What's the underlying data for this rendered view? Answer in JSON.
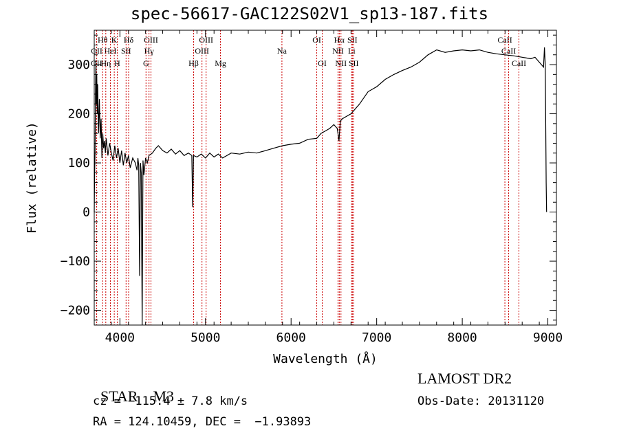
{
  "title": "spec-56617-GAC122S02V1_sp13-187.fits",
  "footer": {
    "class_label": "STAR",
    "subclass": "M3",
    "survey": "LAMOST DR2",
    "cz": "cz = −115.4 ± 7.8 km/s",
    "obs_date": "Obs-Date: 20131120",
    "radec": "RA = 124.10459, DEC =  −1.93893"
  },
  "chart_data": {
    "type": "line",
    "title": "spec-56617-GAC122S02V1_sp13-187.fits",
    "xlabel": "Wavelength (Å)",
    "ylabel": "Flux (relative)",
    "xlim": [
      3700,
      9100
    ],
    "ylim": [
      -230,
      370
    ],
    "xticks": [
      4000,
      5000,
      6000,
      7000,
      8000,
      9000
    ],
    "yticks": [
      -200,
      -100,
      0,
      100,
      200,
      300
    ],
    "ytick_labels": [
      "−200",
      "−100",
      "0",
      "100",
      "200",
      "300"
    ],
    "grid": false,
    "line_color": "#000000",
    "marker_color": "#cc0000",
    "spectrum": [
      [
        3700,
        0
      ],
      [
        3705,
        80
      ],
      [
        3710,
        120
      ],
      [
        3715,
        250
      ],
      [
        3720,
        310
      ],
      [
        3725,
        220
      ],
      [
        3730,
        280
      ],
      [
        3735,
        200
      ],
      [
        3740,
        260
      ],
      [
        3750,
        160
      ],
      [
        3760,
        230
      ],
      [
        3770,
        150
      ],
      [
        3780,
        190
      ],
      [
        3790,
        110
      ],
      [
        3800,
        160
      ],
      [
        3810,
        130
      ],
      [
        3820,
        145
      ],
      [
        3830,
        120
      ],
      [
        3840,
        150
      ],
      [
        3860,
        115
      ],
      [
        3880,
        140
      ],
      [
        3900,
        120
      ],
      [
        3920,
        105
      ],
      [
        3940,
        135
      ],
      [
        3960,
        110
      ],
      [
        3980,
        130
      ],
      [
        4000,
        100
      ],
      [
        4020,
        125
      ],
      [
        4040,
        95
      ],
      [
        4060,
        120
      ],
      [
        4080,
        100
      ],
      [
        4100,
        115
      ],
      [
        4120,
        90
      ],
      [
        4150,
        110
      ],
      [
        4180,
        100
      ],
      [
        4200,
        85
      ],
      [
        4210,
        110
      ],
      [
        4220,
        95
      ],
      [
        4230,
        -130
      ],
      [
        4240,
        100
      ],
      [
        4250,
        80
      ],
      [
        4260,
        -230
      ],
      [
        4270,
        105
      ],
      [
        4280,
        75
      ],
      [
        4300,
        110
      ],
      [
        4320,
        100
      ],
      [
        4340,
        115
      ],
      [
        4380,
        120
      ],
      [
        4420,
        130
      ],
      [
        4450,
        135
      ],
      [
        4500,
        125
      ],
      [
        4550,
        120
      ],
      [
        4600,
        128
      ],
      [
        4650,
        118
      ],
      [
        4700,
        125
      ],
      [
        4750,
        115
      ],
      [
        4800,
        120
      ],
      [
        4840,
        115
      ],
      [
        4850,
        10
      ],
      [
        4860,
        115
      ],
      [
        4900,
        112
      ],
      [
        4950,
        118
      ],
      [
        5000,
        110
      ],
      [
        5050,
        120
      ],
      [
        5100,
        112
      ],
      [
        5150,
        118
      ],
      [
        5200,
        110
      ],
      [
        5300,
        120
      ],
      [
        5400,
        118
      ],
      [
        5500,
        122
      ],
      [
        5600,
        120
      ],
      [
        5700,
        125
      ],
      [
        5800,
        130
      ],
      [
        5900,
        135
      ],
      [
        6000,
        138
      ],
      [
        6100,
        140
      ],
      [
        6200,
        148
      ],
      [
        6300,
        150
      ],
      [
        6350,
        160
      ],
      [
        6400,
        165
      ],
      [
        6450,
        170
      ],
      [
        6500,
        178
      ],
      [
        6540,
        170
      ],
      [
        6560,
        145
      ],
      [
        6575,
        185
      ],
      [
        6600,
        190
      ],
      [
        6700,
        200
      ],
      [
        6800,
        220
      ],
      [
        6900,
        245
      ],
      [
        7000,
        255
      ],
      [
        7100,
        270
      ],
      [
        7200,
        280
      ],
      [
        7300,
        288
      ],
      [
        7400,
        295
      ],
      [
        7500,
        305
      ],
      [
        7600,
        320
      ],
      [
        7700,
        330
      ],
      [
        7800,
        325
      ],
      [
        7900,
        328
      ],
      [
        8000,
        330
      ],
      [
        8100,
        328
      ],
      [
        8200,
        330
      ],
      [
        8300,
        325
      ],
      [
        8400,
        322
      ],
      [
        8500,
        320
      ],
      [
        8600,
        318
      ],
      [
        8700,
        315
      ],
      [
        8800,
        312
      ],
      [
        8850,
        315
      ],
      [
        8900,
        305
      ],
      [
        8950,
        295
      ],
      [
        8960,
        335
      ],
      [
        8970,
        300
      ],
      [
        8980,
        60
      ],
      [
        8985,
        0
      ]
    ],
    "line_markers": [
      {
        "label": "OII",
        "wl": 3727,
        "row": 2
      },
      {
        "label": "Hθ",
        "wl": 3798,
        "row": 0
      },
      {
        "label": "OII",
        "wl": 3729,
        "row": 1
      },
      {
        "label": "HeI",
        "wl": 3889,
        "row": 1
      },
      {
        "label": "Hη",
        "wl": 3835,
        "row": 2
      },
      {
        "label": "K",
        "wl": 3934,
        "row": 0
      },
      {
        "label": "H",
        "wl": 3969,
        "row": 2
      },
      {
        "label": "SII",
        "wl": 4072,
        "row": 1
      },
      {
        "label": "Hδ",
        "wl": 4102,
        "row": 0
      },
      {
        "label": "OIII",
        "wl": 4363,
        "row": 0
      },
      {
        "label": "Hγ",
        "wl": 4340,
        "row": 1
      },
      {
        "label": "G",
        "wl": 4305,
        "row": 2
      },
      {
        "label": "Hβ",
        "wl": 4861,
        "row": 2
      },
      {
        "label": "OIII",
        "wl": 4959,
        "row": 1
      },
      {
        "label": "OIII",
        "wl": 5007,
        "row": 0
      },
      {
        "label": "Mg",
        "wl": 5175,
        "row": 2
      },
      {
        "label": "Na",
        "wl": 5893,
        "row": 1
      },
      {
        "label": "OI",
        "wl": 6300,
        "row": 0
      },
      {
        "label": "OI",
        "wl": 6364,
        "row": 2
      },
      {
        "label": "Hα",
        "wl": 6563,
        "row": 0
      },
      {
        "label": "NII",
        "wl": 6548,
        "row": 1
      },
      {
        "label": "NII",
        "wl": 6583,
        "row": 2
      },
      {
        "label": "SII",
        "wl": 6716,
        "row": 0
      },
      {
        "label": "Li",
        "wl": 6708,
        "row": 1
      },
      {
        "label": "SII",
        "wl": 6731,
        "row": 2
      },
      {
        "label": "CaII",
        "wl": 8498,
        "row": 0
      },
      {
        "label": "CaII",
        "wl": 8542,
        "row": 1
      },
      {
        "label": "CaII",
        "wl": 8662,
        "row": 2
      }
    ]
  }
}
